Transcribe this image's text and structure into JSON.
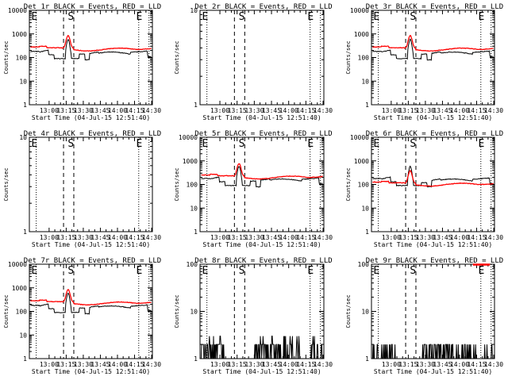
{
  "figure": {
    "colors": {
      "events": "#000000",
      "lld": "#ff0000",
      "background": "#ffffff"
    }
  },
  "chart_data": [
    {
      "type": "line",
      "title": "Det 1r BLACK = Events, RED = LLD",
      "xlabel": "Start Time (04-Jul-15 12:51:40)",
      "ylabel": "Counts/sec",
      "yscale": "log",
      "ylim": [
        1,
        10000
      ],
      "yticks": [
        "1",
        "10",
        "100",
        "1000",
        "10000"
      ],
      "xticks": [
        "13:00",
        "13:15",
        "13:30",
        "13:45",
        "14:00",
        "14:15",
        "14:30"
      ],
      "xlim_min": [
        -9,
        99
      ],
      "markers": [
        "E",
        "S",
        "E"
      ],
      "profile": "full"
    },
    {
      "type": "line",
      "title": "Det 2r BLACK = Events, RED = LLD",
      "xlabel": "Start Time (04-Jul-15 12:51:40)",
      "ylabel": "Counts/sec",
      "yscale": "log",
      "ylim": [
        1,
        10
      ],
      "yticks": [
        "1",
        "10"
      ],
      "xticks": [
        "13:00",
        "13:15",
        "13:30",
        "13:45",
        "14:00",
        "14:15",
        "14:30"
      ],
      "xlim_min": [
        -9,
        99
      ],
      "markers": [
        "E",
        "S",
        "E"
      ],
      "profile": "empty"
    },
    {
      "type": "line",
      "title": "Det 3r BLACK = Events, RED = LLD",
      "xlabel": "Start Time (04-Jul-15 12:51:40)",
      "ylabel": "Counts/sec",
      "yscale": "log",
      "ylim": [
        1,
        10000
      ],
      "yticks": [
        "1",
        "10",
        "100",
        "1000",
        "10000"
      ],
      "xticks": [
        "13:00",
        "13:15",
        "13:30",
        "13:45",
        "14:00",
        "14:15",
        "14:30"
      ],
      "xlim_min": [
        -9,
        99
      ],
      "markers": [
        "E",
        "S",
        "E"
      ],
      "profile": "full"
    },
    {
      "type": "line",
      "title": "Det 4r BLACK = Events, RED = LLD",
      "xlabel": "Start Time (04-Jul-15 12:51:40)",
      "ylabel": "Counts/sec",
      "yscale": "log",
      "ylim": [
        1,
        10
      ],
      "yticks": [
        "1",
        "10"
      ],
      "xticks": [
        "13:00",
        "13:15",
        "13:30",
        "13:45",
        "14:00",
        "14:15",
        "14:30"
      ],
      "xlim_min": [
        -9,
        99
      ],
      "markers": [
        "E",
        "S",
        "E"
      ],
      "profile": "empty"
    },
    {
      "type": "line",
      "title": "Det 5r BLACK = Events, RED = LLD",
      "xlabel": "Start Time (04-Jul-15 12:51:40)",
      "ylabel": "Counts/sec",
      "yscale": "log",
      "ylim": [
        1,
        10000
      ],
      "yticks": [
        "1",
        "10",
        "100",
        "1000",
        "10000"
      ],
      "xticks": [
        "13:00",
        "13:15",
        "13:30",
        "13:45",
        "14:00",
        "14:15",
        "14:30"
      ],
      "xlim_min": [
        -9,
        99
      ],
      "markers": [
        "E",
        "S",
        "E"
      ],
      "profile": "full5"
    },
    {
      "type": "line",
      "title": "Det 6r BLACK = Events, RED = LLD",
      "xlabel": "Start Time (04-Jul-15 12:51:40)",
      "ylabel": "Counts/sec",
      "yscale": "log",
      "ylim": [
        1,
        10000
      ],
      "yticks": [
        "1",
        "10",
        "100",
        "1000",
        "10000"
      ],
      "xticks": [
        "13:00",
        "13:15",
        "13:30",
        "13:45",
        "14:00",
        "14:15",
        "14:30"
      ],
      "xlim_min": [
        -9,
        99
      ],
      "markers": [
        "E",
        "S",
        "E"
      ],
      "profile": "full6"
    },
    {
      "type": "line",
      "title": "Det 7r BLACK = Events, RED = LLD",
      "xlabel": "Start Time (04-Jul-15 12:51:40)",
      "ylabel": "Counts/sec",
      "yscale": "log",
      "ylim": [
        1,
        10000
      ],
      "yticks": [
        "1",
        "10",
        "100",
        "1000",
        "10000"
      ],
      "xticks": [
        "13:00",
        "13:15",
        "13:30",
        "13:45",
        "14:00",
        "14:15",
        "14:30"
      ],
      "xlim_min": [
        -9,
        99
      ],
      "markers": [
        "E",
        "S",
        "E"
      ],
      "profile": "full"
    },
    {
      "type": "line",
      "title": "Det 8r BLACK = Events, RED = LLD",
      "xlabel": "Start Time (04-Jul-15 12:51:40)",
      "ylabel": "Counts/sec",
      "yscale": "log",
      "ylim": [
        1,
        100
      ],
      "yticks": [
        "1",
        "10",
        "100"
      ],
      "xticks": [
        "13:00",
        "13:15",
        "13:30",
        "13:45",
        "14:00",
        "14:15",
        "14:30"
      ],
      "xlim_min": [
        -9,
        99
      ],
      "markers": [
        "E",
        "S",
        "E"
      ],
      "profile": "noise8"
    },
    {
      "type": "line",
      "title": "Det 9r BLACK = Events, RED = LLD",
      "xlabel": "Start Time (04-Jul-15 12:51:40)",
      "ylabel": "Counts/sec",
      "yscale": "log",
      "ylim": [
        1,
        100
      ],
      "yticks": [
        "1",
        "10",
        "100"
      ],
      "xticks": [
        "13:00",
        "13:15",
        "13:30",
        "13:45",
        "14:00",
        "14:15",
        "14:30"
      ],
      "xlim_min": [
        -9,
        99
      ],
      "markers": [
        "E",
        "S",
        "E"
      ],
      "profile": "noise9"
    }
  ],
  "event_times_min": {
    "dotted": [
      -3,
      87,
      96
    ],
    "dashed": [
      21,
      30
    ],
    "labels": [
      {
        "text": "E",
        "t": -8
      },
      {
        "text": "S",
        "t": 24
      },
      {
        "text": "E",
        "t": 84
      }
    ]
  }
}
